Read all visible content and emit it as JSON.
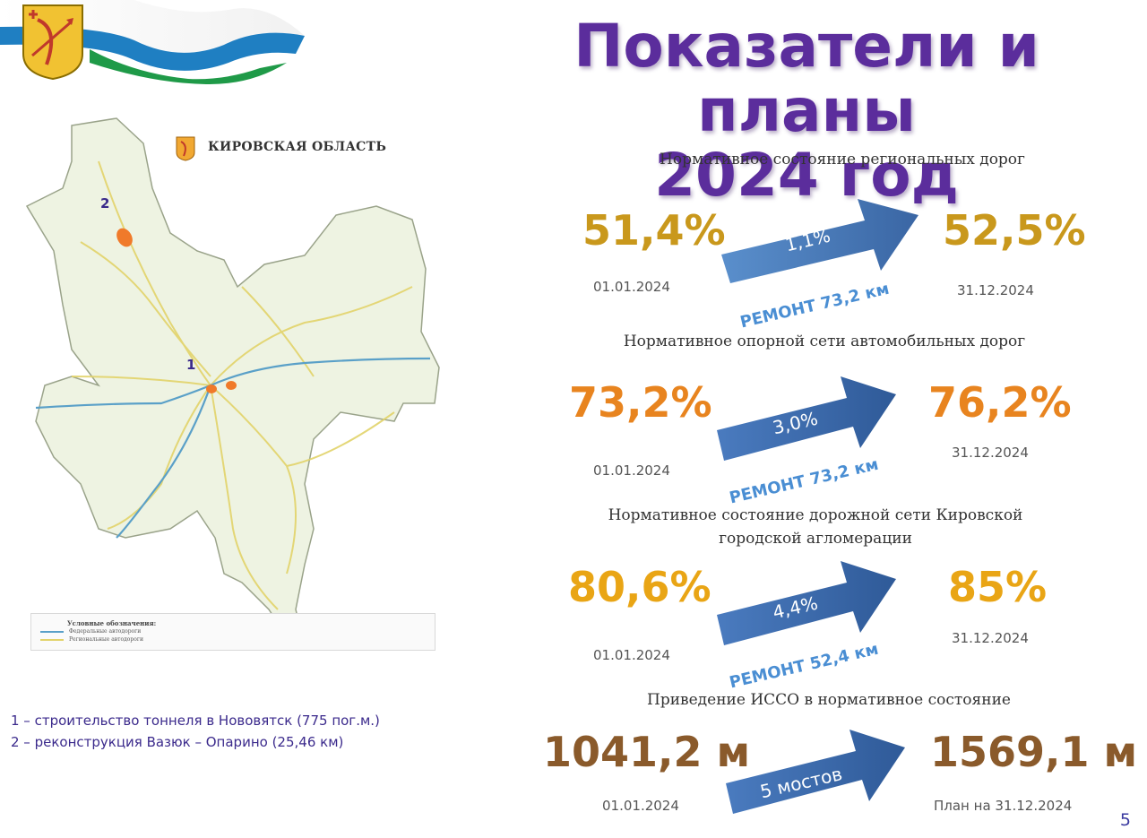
{
  "slide": {
    "title_line1": "Показатели и планы",
    "title_line2": "2024 год",
    "page_number": "5"
  },
  "map": {
    "heading": "КИРОВСКАЯ ОБЛАСТЬ",
    "marker_1": "1",
    "marker_2": "2",
    "legend_title": "Условные обозначения:",
    "legend_federal": "Федеральные автодороги",
    "legend_regional": "Региональные автодороги",
    "colors": {
      "federal": "#5aa0c8",
      "regional": "#e2d36a",
      "fill": "#eef3e2",
      "marker": "#f07a2a"
    }
  },
  "notes": [
    "1 – строительство тоннеля в Нововятск (775 пог.м.)",
    "2 – реконструкция Вазюк – Опарино (25,46 км)"
  ],
  "indicators": [
    {
      "title": "Нормативное состояние региональных дорог",
      "from_value": "51,4%",
      "from_date": "01.01.2024",
      "delta": "1,1%",
      "repair": "РЕМОНТ 73,2 км",
      "to_value": "52,5%",
      "to_date": "31.12.2024"
    },
    {
      "title": "Нормативное опорной сети автомобильных дорог",
      "from_value": "73,2%",
      "from_date": "01.01.2024",
      "delta": "3,0%",
      "repair": "РЕМОНТ 73,2 км",
      "to_value": "76,2%",
      "to_date": "31.12.2024"
    },
    {
      "title_line1": "Нормативное состояние дорожной сети Кировской",
      "title_line2": "городской агломерации",
      "from_value": "80,6%",
      "from_date": "01.01.2024",
      "delta": "4,4%",
      "repair": "РЕМОНТ 52,4 км",
      "to_value": "85%",
      "to_date": "31.12.2024"
    },
    {
      "title": "Приведение ИССО в нормативное состояние",
      "from_value": "1041,2 м",
      "from_date": "01.01.2024",
      "delta": "5 мостов",
      "to_value": "1569,1 м",
      "to_date": "План на 31.12.2024"
    }
  ],
  "colors": {
    "title": "#5b2d9c",
    "arrow_light": "#5a8fcc",
    "arrow_dark": "#3a66a4",
    "repair": "#4a8ed3"
  }
}
